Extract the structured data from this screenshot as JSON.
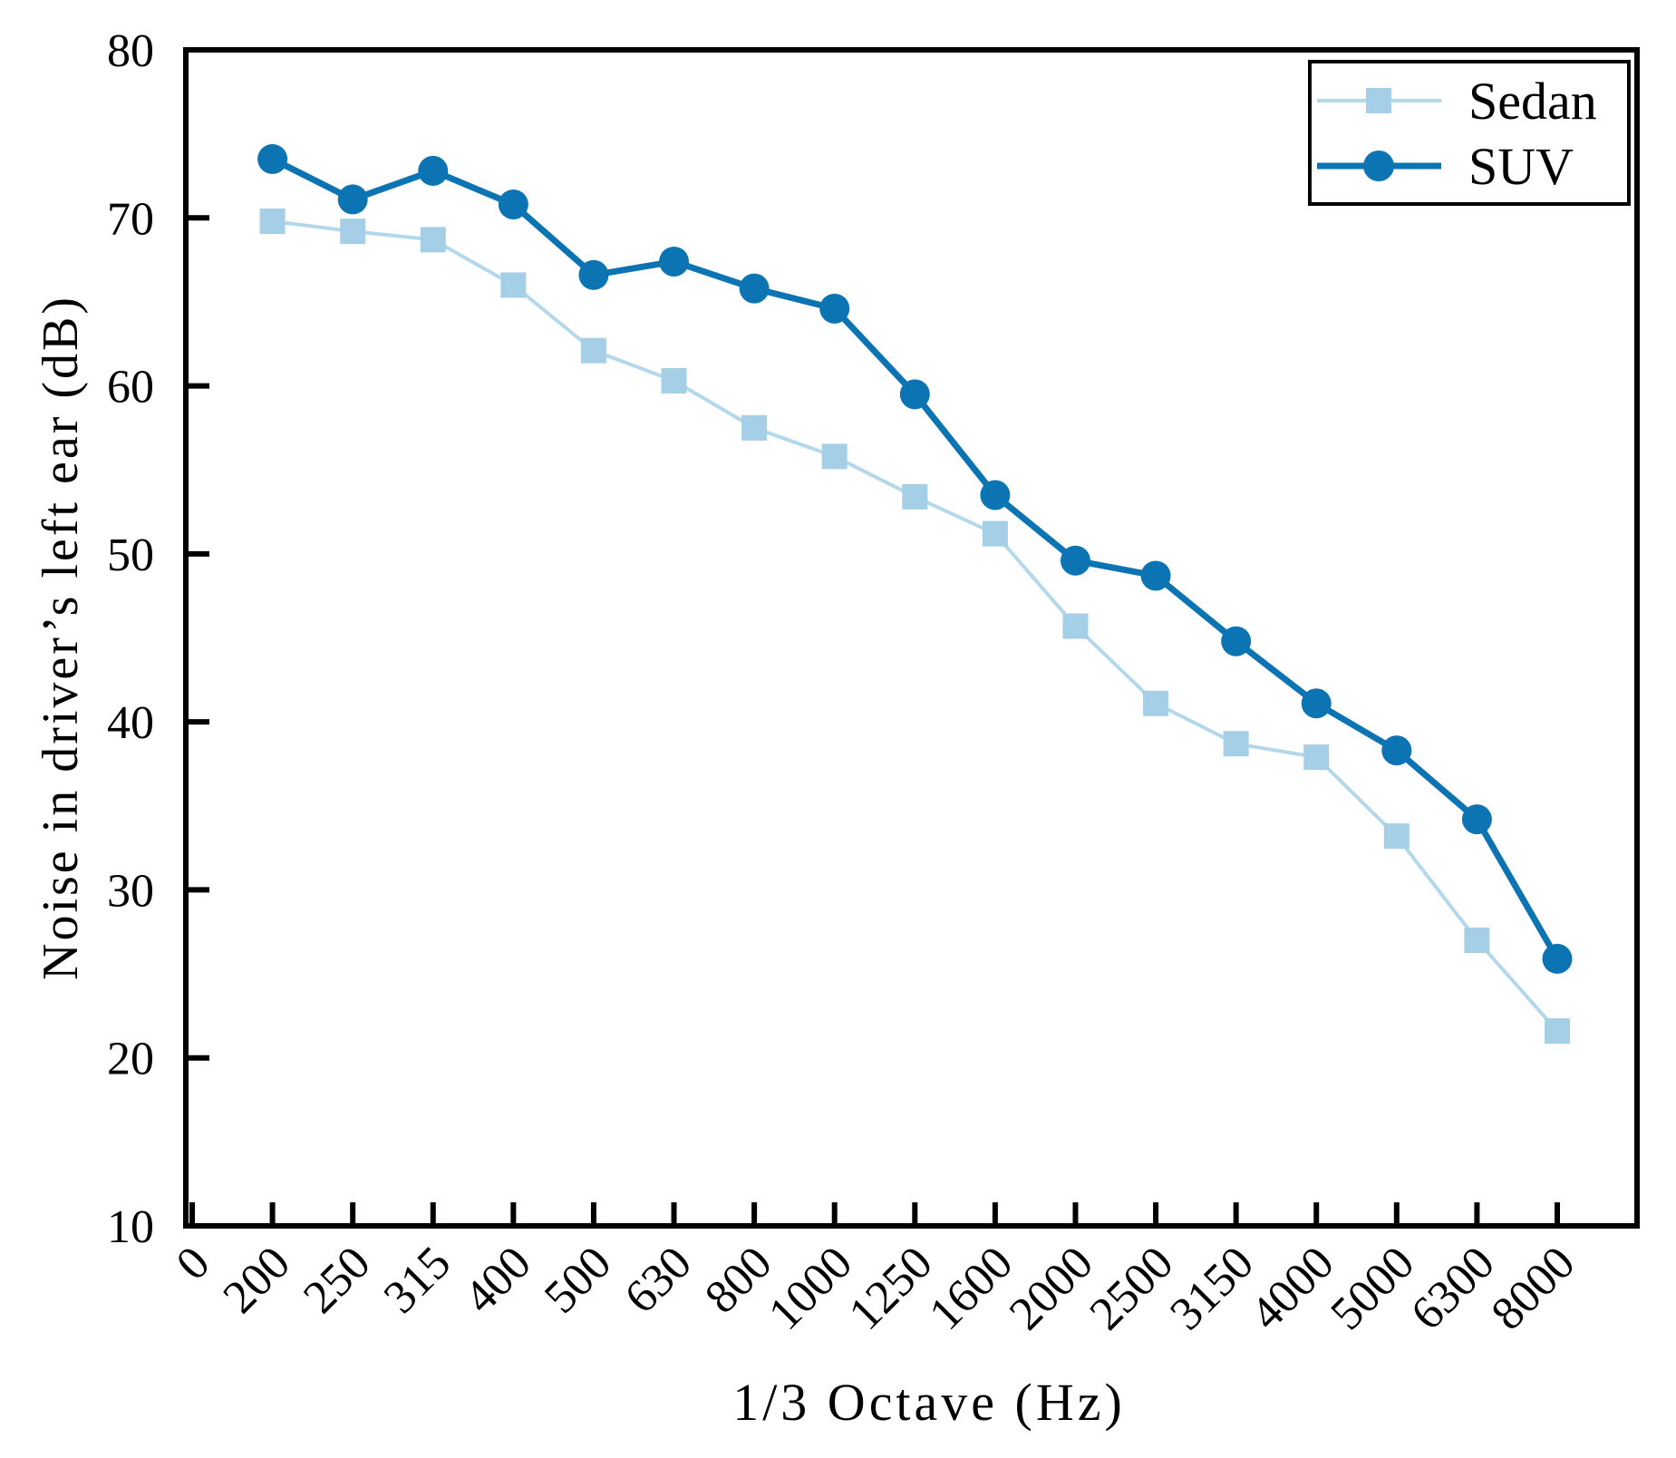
{
  "page": {
    "background": "#ffffff"
  },
  "chart_data": {
    "type": "line",
    "title": "",
    "xlabel": "1/3 Octave (Hz)",
    "ylabel": "Noise in driver’s left ear (dB)",
    "x_axis_categories": [
      "0",
      "200",
      "250",
      "315",
      "400",
      "500",
      "630",
      "800",
      "1000",
      "1250",
      "1600",
      "2000",
      "2500",
      "3150",
      "4000",
      "5000",
      "6300",
      "8000"
    ],
    "frequencies_hz": [
      200,
      250,
      315,
      400,
      500,
      630,
      800,
      1000,
      1250,
      1600,
      2000,
      2500,
      3150,
      4000,
      5000,
      6300,
      8000
    ],
    "y_ticks": [
      10,
      20,
      30,
      40,
      50,
      60,
      70,
      80
    ],
    "ylim": [
      10,
      80
    ],
    "grid": false,
    "axis_color": "#000000",
    "legend": {
      "position": "top-right",
      "entries": [
        {
          "label": "Sedan",
          "marker": "square"
        },
        {
          "label": "SUV",
          "marker": "circle"
        }
      ]
    },
    "series": [
      {
        "name": "Sedan",
        "marker": "square",
        "marker_color": "#a5cfe6",
        "line_color": "#b4d8eb",
        "values": [
          69.8,
          69.2,
          68.7,
          66.0,
          62.1,
          60.3,
          57.5,
          55.8,
          53.4,
          51.2,
          45.7,
          41.1,
          38.7,
          37.9,
          33.2,
          27.0,
          21.6
        ]
      },
      {
        "name": "SUV",
        "marker": "circle",
        "marker_color": "#0d74b3",
        "line_color": "#0d74b3",
        "values": [
          73.5,
          71.1,
          72.8,
          70.8,
          66.6,
          67.4,
          65.8,
          64.6,
          59.5,
          53.5,
          49.6,
          48.7,
          44.8,
          41.1,
          38.3,
          34.2,
          25.9
        ]
      }
    ]
  }
}
